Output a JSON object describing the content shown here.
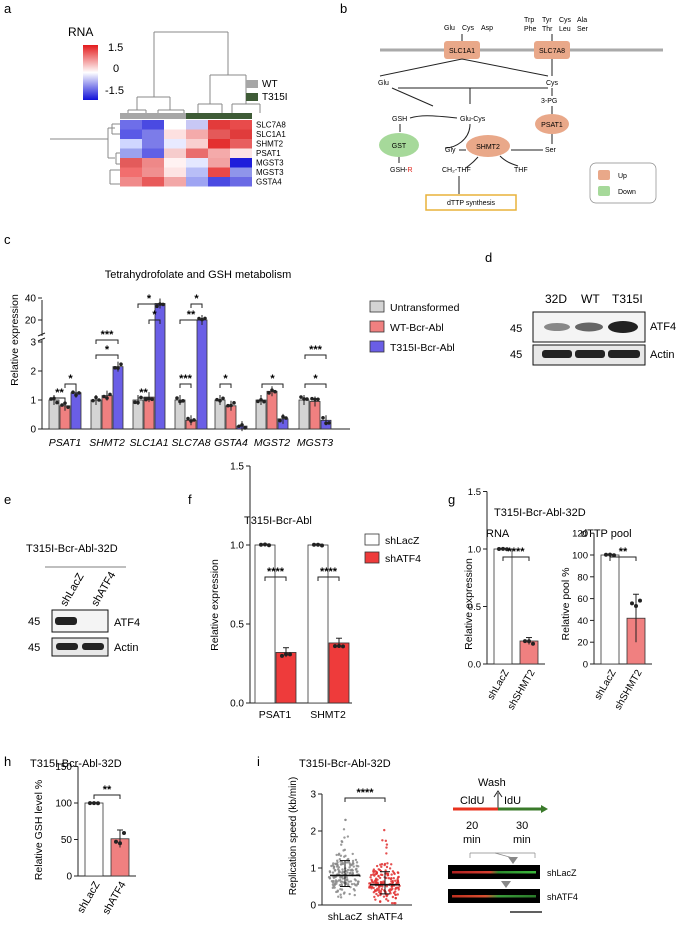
{
  "panels": {
    "a": {
      "letter": "a",
      "title": "RNA",
      "scale": {
        "high": "1.5",
        "mid": "0",
        "low": "-1.5"
      },
      "legend": [
        {
          "label": "WT",
          "color": "#a6a6a6"
        },
        {
          "label": "T315I",
          "color": "#3e5b36"
        }
      ],
      "genes": [
        "SLC7A8",
        "SLC1A1",
        "SHMT2",
        "PSAT1",
        "MGST3",
        "MGST3",
        "GSTA4"
      ],
      "heat_colors": [
        [
          "#6e6ee9",
          "#4a4ae2",
          "#ffffff",
          "#c8c8f5",
          "#e33b3b",
          "#e84b4b"
        ],
        [
          "#5a5ae6",
          "#7c7ce9",
          "#fde0e0",
          "#f4aaaa",
          "#e45959",
          "#e03c3c"
        ],
        [
          "#cfd6ff",
          "#7c7ce9",
          "#e8eaff",
          "#f9d0d0",
          "#e43030",
          "#e85f5f"
        ],
        [
          "#9ba2ee",
          "#6060e5",
          "#f6cccc",
          "#e96d6d",
          "#f4aaaa",
          "#fde4e4"
        ],
        [
          "#e35b5b",
          "#ee8888",
          "#fff2f2",
          "#e4e8ff",
          "#f2a2a2",
          "#1e1edb"
        ],
        [
          "#f26e6e",
          "#f09090",
          "#fde4e4",
          "#b8bef7",
          "#e94848",
          "#8f95ea"
        ],
        [
          "#f08a8a",
          "#e85a5a",
          "#f2a7a7",
          "#9ea4f2",
          "#4a4ae2",
          "#6a6ae5"
        ]
      ]
    },
    "b": {
      "letter": "b",
      "amino_left": [
        "Glu",
        "Cys",
        "Asp"
      ],
      "amino_right_row1": [
        "Trp",
        "Tyr",
        "Cys",
        "Ala"
      ],
      "amino_right_row2": [
        "Phe",
        "Thr",
        "Leu",
        "Ser"
      ],
      "transporters": [
        "SLC1A1",
        "SLC7A8"
      ],
      "metabolites": {
        "glu": "Glu",
        "cys": "Cys",
        "gsh": "GSH",
        "glu_cys": "Glu-Cys",
        "pg3": "3-PG",
        "gly": "Gly",
        "ser": "Ser",
        "ch2thf": "CH₂-THF",
        "thf": "THF",
        "gsh_r_prefix": "GSH-",
        "gsh_r_suffix": "R"
      },
      "enzymes": [
        "GST",
        "PSAT1",
        "SHMT2"
      ],
      "dttp": "dTTP synthesis",
      "legend": {
        "up": "Up",
        "down": "Down"
      },
      "colors": {
        "up": "#e9a889",
        "down": "#a6d99a",
        "dttp_border": "#e8b23a",
        "r_color": "#e0261e"
      }
    },
    "c": {
      "letter": "c",
      "title": "Tetrahydrofolate and GSH metabolism",
      "ylabel": "Relative expression",
      "ticks_upper": [
        "40",
        "20"
      ],
      "ticks_lower": [
        "3",
        "2",
        "1",
        "0"
      ],
      "legend": [
        "Untransformed",
        "WT-Bcr-Abl",
        "T315I-Bcr-Abl"
      ],
      "colors": [
        "#d4d4d4",
        "#f08080",
        "#6a5ee6"
      ],
      "sig_low": [
        "**",
        "*",
        "*",
        "**",
        "***",
        "*",
        "*",
        "*"
      ],
      "sig_high": [
        "*",
        "***",
        "*",
        "**",
        "*",
        "***"
      ]
    },
    "d": {
      "letter": "d",
      "lanes": [
        "32D",
        "WT",
        "T315I"
      ],
      "marker": "45",
      "bands": [
        "ATF4",
        "Actin"
      ]
    },
    "e": {
      "letter": "e",
      "title": "T315I-Bcr-Abl-32D",
      "lanes": [
        "shLacZ",
        "shATF4"
      ],
      "marker": "45",
      "bands": [
        "ATF4",
        "Actin"
      ]
    },
    "f": {
      "letter": "f",
      "title": "T315I-Bcr-Abl",
      "ylabel": "Relative expression",
      "ticks": [
        "1.5",
        "1.0",
        "0.5",
        "0.0"
      ],
      "legend": [
        "shLacZ",
        "shATF4"
      ],
      "sig": "****"
    },
    "g": {
      "letter": "g",
      "title": "T315I-Bcr-Abl-32D",
      "rna_title": "RNA",
      "rna_ylabel": "Relative expression",
      "rna_ticks": [
        "1.5",
        "1.0",
        "0.5",
        "0.0"
      ],
      "dttp_title": "dTTP pool",
      "dttp_ylabel": "Relative pool %",
      "dttp_ticks": [
        "120",
        "100",
        "80",
        "60",
        "40",
        "20",
        "0"
      ],
      "xlabels": [
        "shLacZ",
        "shSHMT2"
      ],
      "sig_rna": "****",
      "sig_dttp": "**"
    },
    "h": {
      "letter": "h",
      "title": "T315I-Bcr-Abl-32D",
      "ylabel": "Relative GSH level %",
      "ticks": [
        "150",
        "100",
        "50",
        "0"
      ],
      "xlabels": [
        "shLacZ",
        "shATF4"
      ],
      "sig": "**"
    },
    "i": {
      "letter": "i",
      "title": "T315I-Bcr-Abl-32D",
      "ylabel": "Replication speed (kb/min)",
      "ticks": [
        "3",
        "2",
        "1",
        "0"
      ],
      "xlabels": [
        "shLacZ",
        "shATF4"
      ],
      "sig": "****",
      "wash": "Wash",
      "cldu": "CldU",
      "idu": "IdU",
      "t1": "20",
      "t2": "30",
      "unit": "min",
      "fiber_labels": [
        "shLacZ",
        "shATF4"
      ]
    }
  },
  "chart_data": [
    {
      "type": "bar",
      "panel": "c",
      "title": "Tetrahydrofolate and GSH metabolism",
      "ylabel": "Relative expression",
      "categories": [
        "PSAT1",
        "SHMT2",
        "SLC1A1",
        "SLC7A8",
        "GSTA4",
        "MGST2",
        "MGST3"
      ],
      "series": [
        {
          "name": "Untransformed",
          "values": [
            1.0,
            1.0,
            1.0,
            1.0,
            1.0,
            1.0,
            1.0
          ]
        },
        {
          "name": "WT-Bcr-Abl",
          "values": [
            0.8,
            1.15,
            1.1,
            0.3,
            0.8,
            1.3,
            0.95
          ]
        },
        {
          "name": "T315I-Bcr-Abl",
          "values": [
            1.25,
            2.15,
            35,
            20,
            0.1,
            0.35,
            0.3
          ]
        }
      ],
      "ylim": [
        0,
        40
      ],
      "axis_break": [
        3,
        10
      ]
    },
    {
      "type": "bar",
      "panel": "f",
      "title": "T315I-Bcr-Abl",
      "ylabel": "Relative expression",
      "categories": [
        "PSAT1",
        "SHMT2"
      ],
      "series": [
        {
          "name": "shLacZ",
          "values": [
            1.0,
            1.0
          ]
        },
        {
          "name": "shATF4",
          "values": [
            0.32,
            0.38
          ]
        }
      ],
      "ylim": [
        0,
        1.5
      ]
    },
    {
      "type": "bar",
      "panel": "g-rna",
      "title": "RNA",
      "ylabel": "Relative expression",
      "categories": [
        "shLacZ",
        "shSHMT2"
      ],
      "values": [
        1.0,
        0.2
      ],
      "ylim": [
        0,
        1.5
      ]
    },
    {
      "type": "bar",
      "panel": "g-dttp",
      "title": "dTTP pool",
      "ylabel": "Relative pool %",
      "categories": [
        "shLacZ",
        "shSHMT2"
      ],
      "values": [
        100,
        42
      ],
      "ylim": [
        0,
        120
      ]
    },
    {
      "type": "bar",
      "panel": "h",
      "title": "T315I-Bcr-Abl-32D",
      "ylabel": "Relative GSH level %",
      "categories": [
        "shLacZ",
        "shATF4"
      ],
      "values": [
        100,
        51
      ],
      "ylim": [
        0,
        150
      ]
    },
    {
      "type": "scatter",
      "panel": "i",
      "title": "T315I-Bcr-Abl-32D",
      "ylabel": "Replication speed (kb/min)",
      "categories": [
        "shLacZ",
        "shATF4"
      ],
      "medians": [
        0.8,
        0.55
      ],
      "sd_upper": [
        1.2,
        0.9
      ],
      "sd_lower": [
        0.5,
        0.3
      ],
      "ylim": [
        0,
        3
      ]
    }
  ]
}
